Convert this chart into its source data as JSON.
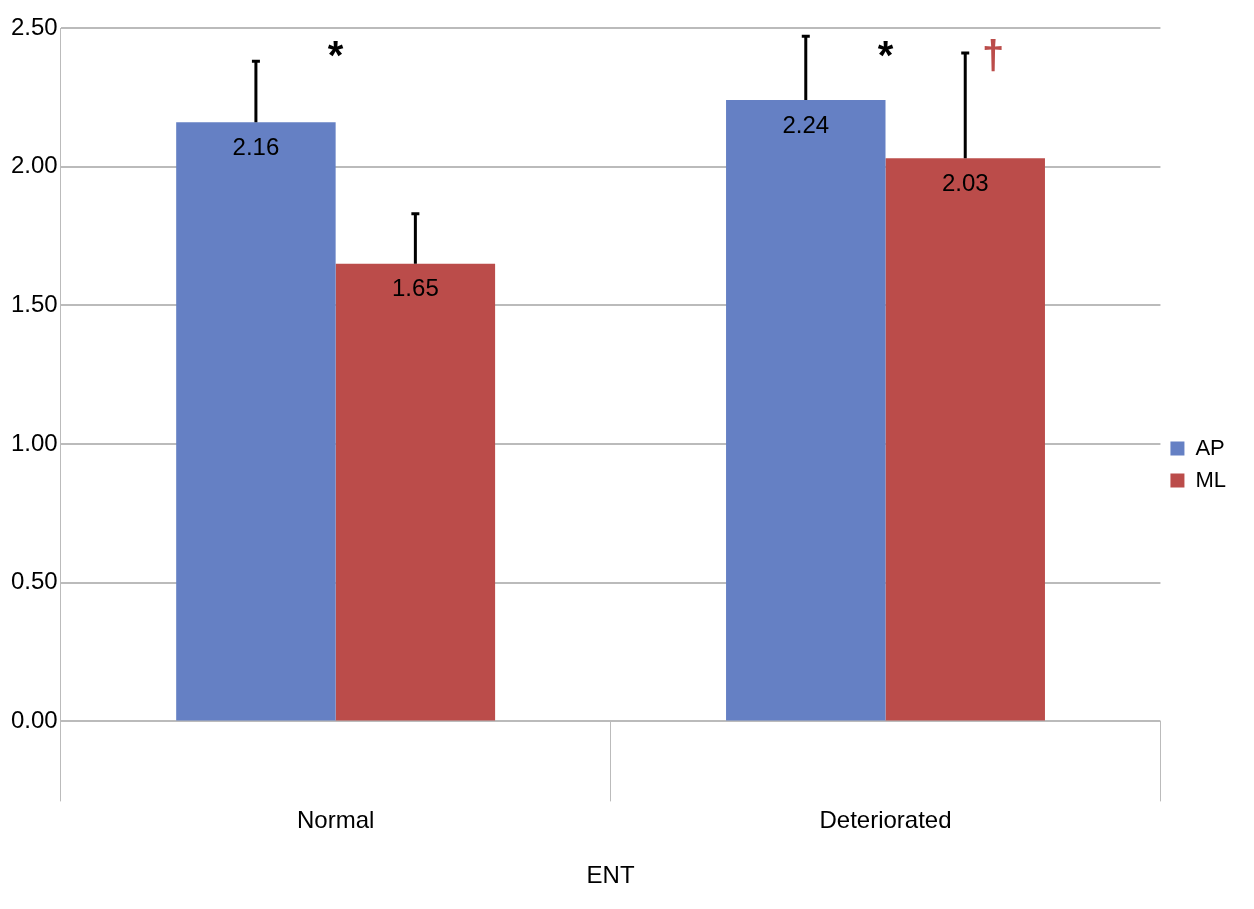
{
  "chart_data": {
    "type": "bar",
    "xlabel": "ENT",
    "categories": [
      "Normal",
      "Deteriorated"
    ],
    "series": [
      {
        "name": "AP",
        "color": "#6580c4",
        "values": [
          2.16,
          2.24
        ],
        "errors": [
          [
            2.16,
            2.38
          ],
          [
            2.24,
            2.47
          ]
        ]
      },
      {
        "name": "ML",
        "color": "#bb4c4a",
        "values": [
          1.65,
          2.03
        ],
        "errors": [
          [
            1.65,
            1.83
          ],
          [
            2.03,
            2.41
          ]
        ]
      }
    ],
    "ylim": [
      0,
      2.5
    ],
    "yticks": [
      {
        "value": 0,
        "label": "0.00"
      },
      {
        "value": 0.5,
        "label": "0.50"
      },
      {
        "value": 1,
        "label": "1.00"
      },
      {
        "value": 1.5,
        "label": "1.50"
      },
      {
        "value": 2,
        "label": "2.00"
      },
      {
        "value": 2.5,
        "label": "2.50"
      }
    ],
    "grid": "y",
    "legend": "right",
    "data_labels": true,
    "annotations": [
      "*",
      "*",
      "†"
    ]
  }
}
